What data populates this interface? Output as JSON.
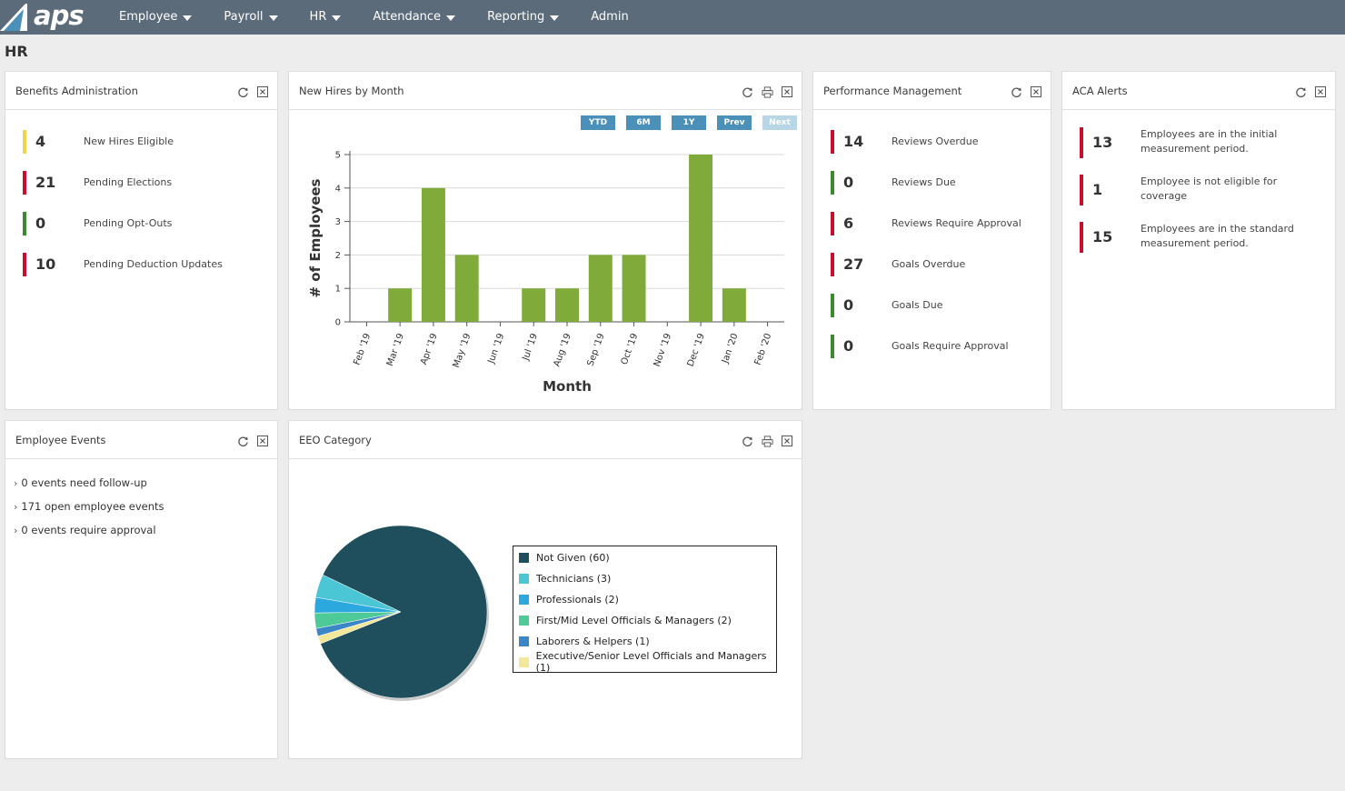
{
  "app": {
    "logo_text": "aps"
  },
  "nav": [
    {
      "label": "Employee",
      "has_menu": true
    },
    {
      "label": "Payroll",
      "has_menu": true
    },
    {
      "label": "HR",
      "has_menu": true
    },
    {
      "label": "Attendance",
      "has_menu": true
    },
    {
      "label": "Reporting",
      "has_menu": true
    },
    {
      "label": "Admin",
      "has_menu": false
    }
  ],
  "page_title": "HR",
  "benefits": {
    "title": "Benefits Administration",
    "items": [
      {
        "value": "4",
        "label": "New Hires Eligible",
        "color": "#f2d44b"
      },
      {
        "value": "21",
        "label": "Pending Elections",
        "color": "#c8102e"
      },
      {
        "value": "0",
        "label": "Pending Opt-Outs",
        "color": "#3a8a2e"
      },
      {
        "value": "10",
        "label": "Pending Deduction Updates",
        "color": "#c8102e"
      }
    ]
  },
  "new_hires": {
    "title": "New Hires by Month",
    "periods": [
      {
        "label": "YTD",
        "disabled": false
      },
      {
        "label": "6M",
        "disabled": false
      },
      {
        "label": "1Y",
        "disabled": false
      },
      {
        "label": "Prev",
        "disabled": false
      },
      {
        "label": "Next",
        "disabled": true
      }
    ]
  },
  "performance": {
    "title": "Performance Management",
    "items": [
      {
        "value": "14",
        "label": "Reviews Overdue",
        "color": "#c8102e"
      },
      {
        "value": "0",
        "label": "Reviews Due",
        "color": "#3a8a2e"
      },
      {
        "value": "6",
        "label": "Reviews Require Approval",
        "color": "#c8102e"
      },
      {
        "value": "27",
        "label": "Goals Overdue",
        "color": "#c8102e"
      },
      {
        "value": "0",
        "label": "Goals Due",
        "color": "#3a8a2e"
      },
      {
        "value": "0",
        "label": "Goals Require Approval",
        "color": "#3a8a2e"
      }
    ]
  },
  "aca": {
    "title": "ACA Alerts",
    "items": [
      {
        "value": "13",
        "label": "Employees are in the initial measurement period."
      },
      {
        "value": "1",
        "label": "Employee is not eligible for coverage"
      },
      {
        "value": "15",
        "label": "Employees are in the standard measurement period."
      }
    ]
  },
  "events": {
    "title": "Employee Events",
    "items": [
      "0 events need follow-up",
      "171 open employee events",
      "0 events require approval"
    ]
  },
  "eeo": {
    "title": "EEO Category"
  },
  "colors": {
    "bar": "#80ab3a",
    "nav_bg": "#5c6b7a",
    "accent_red": "#c8102e",
    "accent_green": "#3a8a2e"
  },
  "icons": {
    "refresh": "refresh-icon",
    "print": "print-icon",
    "close": "close-icon",
    "chevron": "chevron-right-icon"
  },
  "chart_data": [
    {
      "type": "bar",
      "categories": [
        "Feb '19",
        "Mar '19",
        "Apr '19",
        "May '19",
        "Jun '19",
        "Jul '19",
        "Aug '19",
        "Sep '19",
        "Oct '19",
        "Nov '19",
        "Dec '19",
        "Jan '20",
        "Feb '20"
      ],
      "values": [
        0,
        1,
        4,
        2,
        0,
        1,
        1,
        2,
        2,
        0,
        5,
        1,
        0
      ],
      "xlabel": "Month",
      "ylabel": "# of Employees",
      "ylim": [
        0,
        5
      ],
      "yticks": [
        0,
        1,
        2,
        3,
        4,
        5
      ],
      "grid": true
    },
    {
      "type": "pie",
      "slices": [
        {
          "label": "Not Given (60)",
          "value": 60,
          "color": "#1f4e5c"
        },
        {
          "label": "Technicians (3)",
          "value": 3,
          "color": "#4bc6d4"
        },
        {
          "label": "Professionals (2)",
          "value": 2,
          "color": "#2ba8de"
        },
        {
          "label": "First/Mid Level Officials & Managers (2)",
          "value": 2,
          "color": "#4ec998"
        },
        {
          "label": "Laborers & Helpers (1)",
          "value": 1,
          "color": "#3a86c6"
        },
        {
          "label": "Executive/Senior Level Officials and Managers (1)",
          "value": 1,
          "color": "#f3e79a"
        }
      ],
      "legend": "right"
    }
  ]
}
